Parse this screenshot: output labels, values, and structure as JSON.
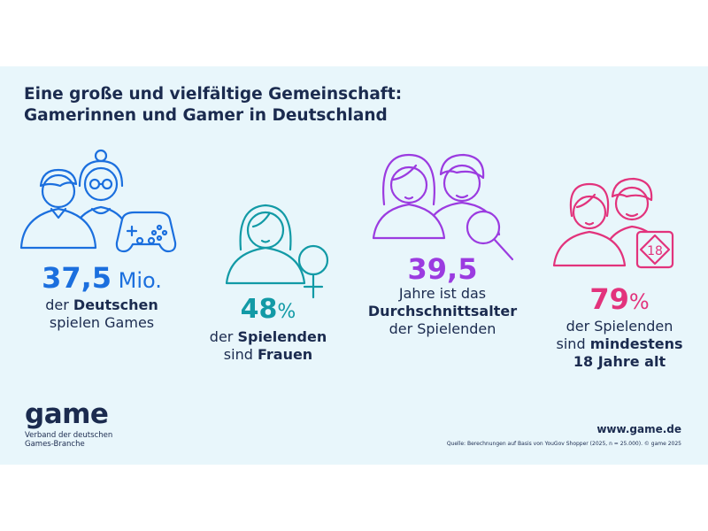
{
  "title": {
    "line1": "Eine große und vielfältige Gemeinschaft:",
    "line2": "Gamerinnen und Gamer in Deutschland"
  },
  "colors": {
    "background": "#e8f6fb",
    "dark_text": "#1b2b4f",
    "blue": "#1b6fde",
    "teal": "#129aa6",
    "purple": "#9b3be0",
    "pink": "#e2337c"
  },
  "stats": [
    {
      "value": "37,5",
      "unit": " Mio.",
      "caption_parts": [
        "der ",
        "Deutschen",
        "spielen Games"
      ],
      "icon": "people-with-gamepad-icon"
    },
    {
      "value": "48",
      "unit": "%",
      "caption_parts": [
        "der ",
        "Spielenden",
        "sind ",
        "Frauen"
      ],
      "icon": "woman-with-female-symbol-icon"
    },
    {
      "value": "39,5",
      "unit": "",
      "caption_parts": [
        "Jahre ist das",
        "Durchschnittsalter",
        "der Spielenden"
      ],
      "icon": "people-with-magnifier-icon"
    },
    {
      "value": "79",
      "unit": "%",
      "caption_parts": [
        "der Spielenden",
        "sind ",
        "mindestens",
        "18 Jahre alt"
      ],
      "icon": "people-with-age-18-icon",
      "badge": "18"
    }
  ],
  "footer": {
    "logo": "game",
    "logo_sub1": "Verband der deutschen",
    "logo_sub2": "Games-Branche",
    "url": "www.game.de",
    "source": "Quelle: Berechnungen auf Basis von YouGov Shopper (2025, n = 25.000). © game 2025"
  }
}
